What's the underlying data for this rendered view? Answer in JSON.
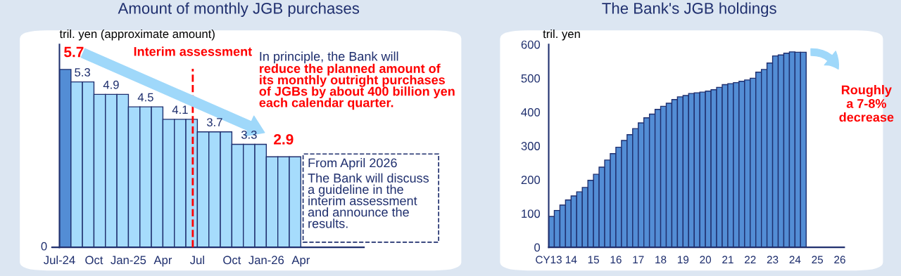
{
  "chart_data": [
    {
      "type": "bar",
      "title": "Amount of monthly JGB purchases",
      "ylabel": "tril. yen (approximate amount)",
      "categories": [
        "Jul-24",
        null,
        null,
        "Oct",
        null,
        null,
        "Jan-25",
        null,
        null,
        "Apr",
        null,
        null,
        "Jul",
        null,
        null,
        "Oct",
        null,
        null,
        "Jan-26",
        null,
        null,
        "Apr"
      ],
      "values": [
        5.7,
        5.3,
        5.3,
        4.9,
        4.9,
        4.9,
        4.5,
        4.5,
        4.5,
        4.1,
        4.1,
        4.1,
        3.7,
        3.7,
        3.7,
        3.3,
        3.3,
        3.3,
        2.9,
        2.9,
        2.9,
        null
      ],
      "colors": [
        "#538dd5",
        "#a6dcfc",
        "#a6dcfc",
        "#a6dcfc",
        "#a6dcfc",
        "#a6dcfc",
        "#a6dcfc",
        "#a6dcfc",
        "#a6dcfc",
        "#a6dcfc",
        "#a6dcfc",
        "#a6dcfc",
        "#a6dcfc",
        "#a6dcfc",
        "#a6dcfc",
        "#a6dcfc",
        "#a6dcfc",
        "#a6dcfc",
        "#a6dcfc",
        "#a6dcfc",
        "#a6dcfc",
        "#a6dcfc"
      ],
      "value_labels": [
        "5.7",
        "5.3",
        null,
        null,
        "4.9",
        null,
        null,
        "4.5",
        null,
        null,
        "4.1",
        null,
        null,
        "3.7",
        null,
        null,
        "3.3",
        null,
        null,
        "2.9",
        null,
        null
      ],
      "ylim": [
        0,
        6.5
      ],
      "ref_lines": [
        {
          "axis": "x",
          "value": "Jul",
          "label": "Interim assessment",
          "color": "#ff0000",
          "line_style": "dashed"
        }
      ],
      "annotations": [
        "0",
        "In principle, the Bank will",
        "reduce the planned amount of\nits monthly outright purchases\nof JGBs by about 400 billion yen\neach calendar quarter.",
        "From April 2026",
        "The Bank will discuss\na guideline in the\ninterim assessment\nand announce the\nresults."
      ]
    },
    {
      "type": "bar",
      "title": "The Bank's JGB holdings",
      "ylabel": "tril. yen",
      "x": [
        13.125,
        13.375,
        13.625,
        13.875,
        14.125,
        14.375,
        14.625,
        14.875,
        15.125,
        15.375,
        15.625,
        15.875,
        16.125,
        16.375,
        16.625,
        16.875,
        17.125,
        17.375,
        17.625,
        17.875,
        18.125,
        18.375,
        18.625,
        18.875,
        19.125,
        19.375,
        19.625,
        19.875,
        20.125,
        20.375,
        20.625,
        20.875,
        21.125,
        21.375,
        21.625,
        21.875,
        22.125,
        22.375,
        22.625,
        22.875,
        23.125,
        23.375,
        23.625,
        23.875,
        24.125,
        24.375
      ],
      "values": [
        91,
        109,
        125,
        140,
        152,
        164,
        177,
        198,
        216,
        237,
        258,
        277,
        296,
        316,
        333,
        351,
        368,
        383,
        394,
        408,
        417,
        426,
        437,
        445,
        449,
        455,
        457,
        459,
        462,
        466,
        473,
        481,
        484,
        487,
        491,
        495,
        500,
        518,
        526,
        545,
        566,
        569,
        574,
        578,
        577,
        577
      ],
      "color": "#538dd5",
      "xlim": [
        13,
        26.2
      ],
      "xticks": [
        {
          "value": 13,
          "label": "CY13"
        },
        14,
        15,
        16,
        17,
        18,
        19,
        20,
        21,
        22,
        23,
        24,
        25,
        26
      ],
      "ylim": [
        0,
        600
      ],
      "yticks": [
        0,
        100,
        200,
        300,
        400,
        500,
        600
      ],
      "annotations": [
        "Roughly\na 7-8%\ndecrease"
      ]
    }
  ]
}
